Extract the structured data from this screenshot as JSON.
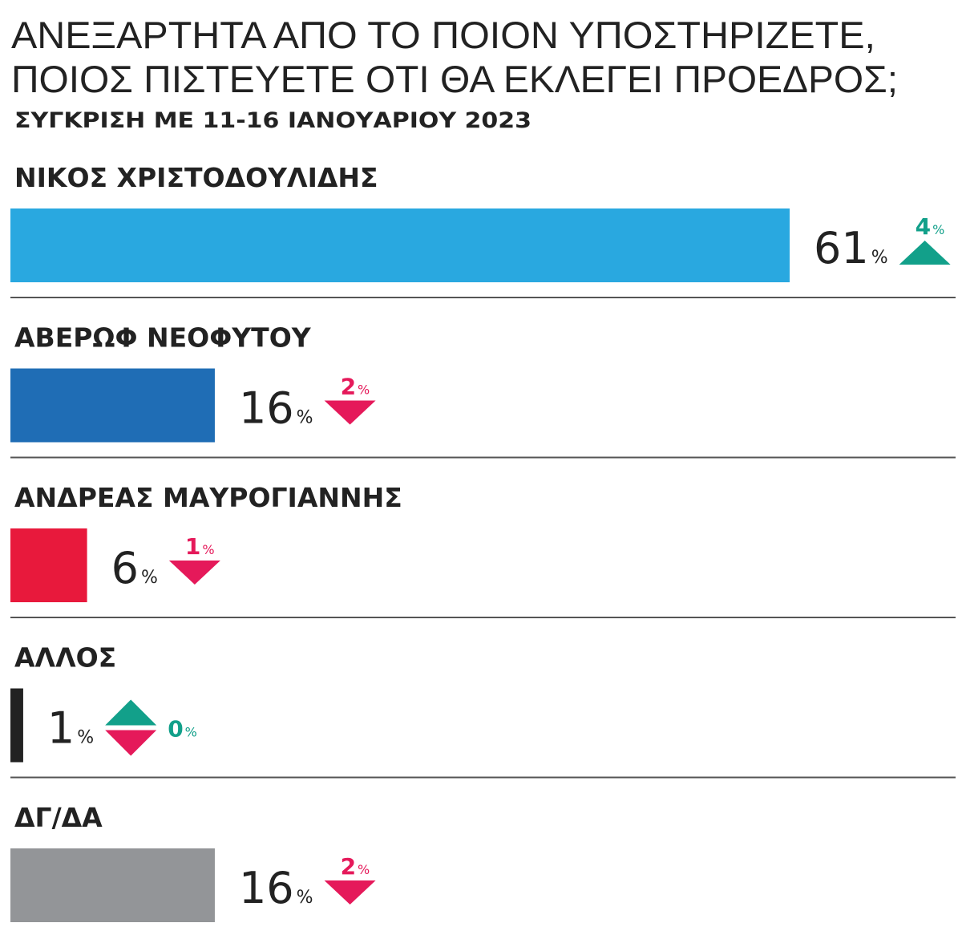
{
  "chart_data": {
    "type": "bar",
    "title": [
      "ΑΝΕΞΑΡΤΗΤΑ ΑΠΟ ΤΟ ΠΟΙΟΝ ΥΠΟΣΤΗΡΙΖΕΤΕ,",
      "ΠΟΙΟΣ ΠΙΣΤΕΥΕΤΕ ΟΤΙ ΘΑ ΕΚΛΕΓΕΙ ΠΡΟΕΔΡΟΣ;"
    ],
    "subtitle": "ΣΥΓΚΡΙΣΗ ΜΕ 11-16 ΙΑΝΟΥΑΡΙΟΥ 2023",
    "unit": "%",
    "categories": [
      "ΝΙΚΟΣ ΧΡΙΣΤΟΔΟΥΛΙΔΗΣ",
      "ΑΒΕΡΩΦ ΝΕΟΦΥΤΟΥ",
      "ΑΝΔΡΕΑΣ ΜΑΥΡΟΓΙΑΝΝΗΣ",
      "ΑΛΛΟΣ",
      "ΔΓ/ΔΑ"
    ],
    "values": [
      61,
      16,
      6,
      1,
      16
    ],
    "colors": [
      "#29a8e0",
      "#1f6db5",
      "#e8193c",
      "#222222",
      "#939598"
    ],
    "changes": [
      4,
      2,
      1,
      0,
      2
    ],
    "change_directions": [
      "up",
      "down",
      "down",
      "both",
      "down"
    ],
    "up_color": "#12a08a",
    "down_color": "#e5195a"
  }
}
